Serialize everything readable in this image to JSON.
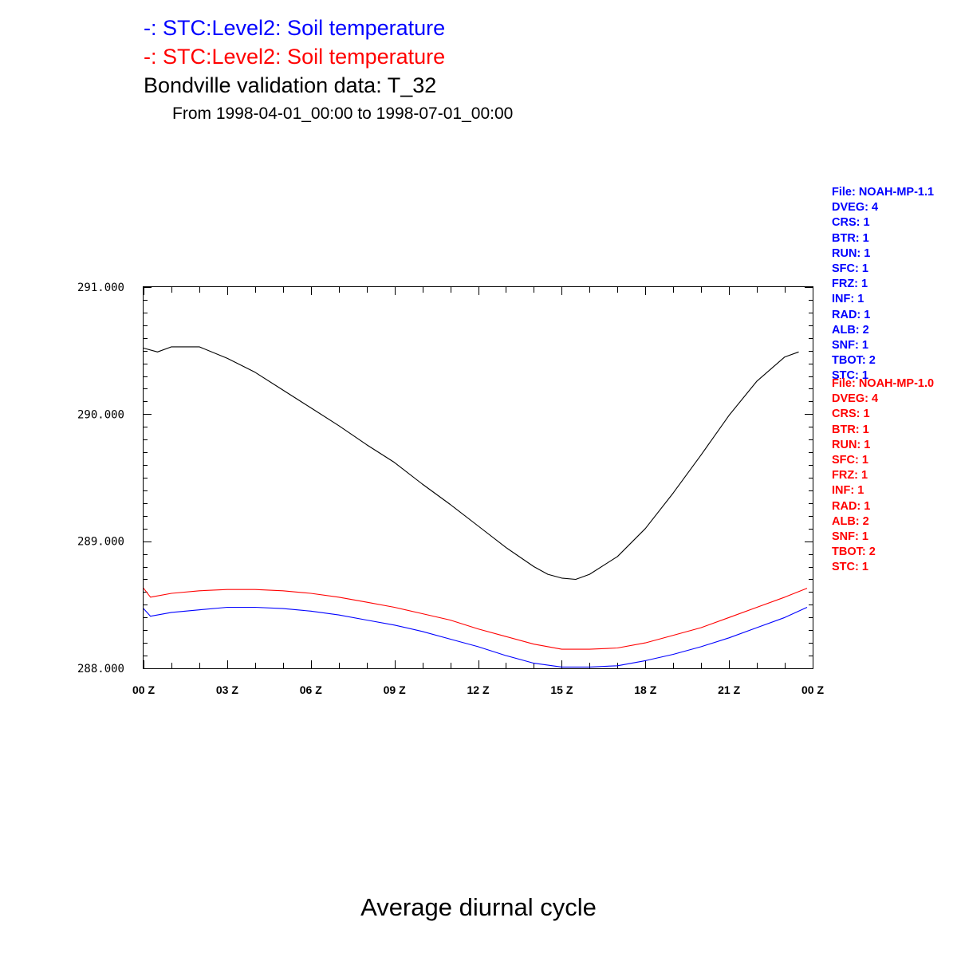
{
  "titles": {
    "line1": "-: STC:Level2: Soil temperature",
    "line2": "-: STC:Level2: Soil temperature",
    "line3": "Bondville validation data: T_32",
    "subtitle": "From 1998-04-01_00:00 to 1998-07-01_00:00"
  },
  "xlabel": "Average diurnal cycle",
  "colors": {
    "blue": "#0000ff",
    "red": "#ff0000",
    "black": "#000000"
  },
  "meta_blue": [
    "File: NOAH-MP-1.1",
    "DVEG: 4",
    "CRS: 1",
    "BTR: 1",
    "RUN: 1",
    "SFC: 1",
    "FRZ: 1",
    "INF: 1",
    "RAD: 1",
    "ALB: 2",
    "SNF: 1",
    "TBOT: 2",
    "STC: 1"
  ],
  "meta_red": [
    "File: NOAH-MP-1.0",
    "DVEG: 4",
    "CRS: 1",
    "BTR: 1",
    "RUN: 1",
    "SFC: 1",
    "FRZ: 1",
    "INF: 1",
    "RAD: 1",
    "ALB: 2",
    "SNF: 1",
    "TBOT: 2",
    "STC: 1"
  ],
  "chart_data": {
    "type": "line",
    "title": "Bondville validation data: T_32",
    "xlabel": "Average diurnal cycle",
    "ylabel": "",
    "xlim": [
      0,
      24
    ],
    "ylim": [
      288,
      291
    ],
    "x_tick_labels": [
      "00 Z",
      "03 Z",
      "06 Z",
      "09 Z",
      "12 Z",
      "15 Z",
      "18 Z",
      "21 Z",
      "00 Z"
    ],
    "y_tick_labels": [
      "288.000",
      "289.000",
      "290.000",
      "291.000"
    ],
    "y_tick_values": [
      288,
      289,
      290,
      291
    ],
    "grid": false,
    "series": [
      {
        "color": "#000000",
        "x": [
          0,
          0.5,
          1,
          1.5,
          2,
          3,
          4,
          5,
          6,
          7,
          8,
          9,
          10,
          11,
          12,
          13,
          14,
          14.5,
          15,
          15.5,
          16,
          17,
          18,
          19,
          20,
          21,
          22,
          23,
          23.5
        ],
        "y": [
          290.52,
          290.49,
          290.53,
          290.53,
          290.53,
          290.44,
          290.33,
          290.19,
          290.05,
          289.91,
          289.76,
          289.62,
          289.45,
          289.29,
          289.12,
          288.95,
          288.8,
          288.74,
          288.71,
          288.7,
          288.74,
          288.88,
          289.1,
          289.38,
          289.68,
          289.99,
          290.26,
          290.45,
          290.49
        ]
      },
      {
        "color": "#ff0000",
        "x": [
          0,
          0.25,
          1,
          2,
          3,
          4,
          5,
          6,
          7,
          8,
          9,
          10,
          11,
          12,
          13,
          14,
          15,
          16,
          17,
          18,
          19,
          20,
          21,
          22,
          23,
          23.8
        ],
        "y": [
          288.63,
          288.56,
          288.59,
          288.61,
          288.62,
          288.62,
          288.61,
          288.59,
          288.56,
          288.52,
          288.48,
          288.43,
          288.38,
          288.31,
          288.25,
          288.19,
          288.15,
          288.15,
          288.16,
          288.2,
          288.26,
          288.32,
          288.4,
          288.48,
          288.56,
          288.63
        ]
      },
      {
        "color": "#0000ff",
        "x": [
          0,
          0.25,
          1,
          2,
          3,
          4,
          5,
          6,
          7,
          8,
          9,
          10,
          11,
          12,
          13,
          14,
          15,
          16,
          17,
          18,
          19,
          20,
          21,
          22,
          23,
          23.8
        ],
        "y": [
          288.47,
          288.41,
          288.44,
          288.46,
          288.48,
          288.48,
          288.47,
          288.45,
          288.42,
          288.38,
          288.34,
          288.29,
          288.23,
          288.17,
          288.1,
          288.04,
          288.01,
          288.01,
          288.02,
          288.06,
          288.11,
          288.17,
          288.24,
          288.32,
          288.4,
          288.48
        ]
      }
    ]
  }
}
